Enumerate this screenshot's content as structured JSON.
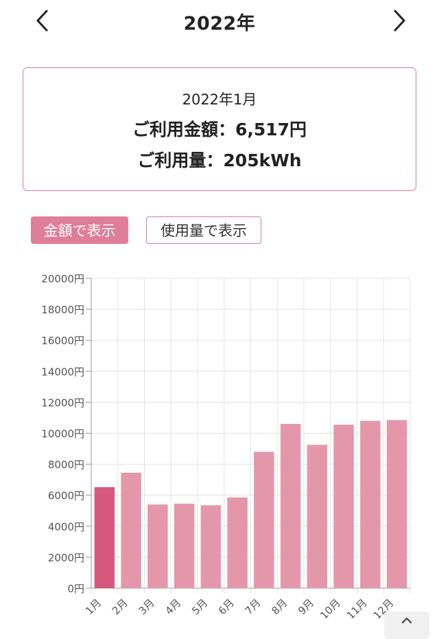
{
  "header": {
    "title": "2022年",
    "prev_icon": "chevron-left-icon",
    "next_icon": "chevron-right-icon"
  },
  "summary": {
    "month": "2022年1月",
    "amount": "ご利用金額：6,517円",
    "usage": "ご利用量：205kWh"
  },
  "toggles": {
    "amount_label": "金額で表示",
    "usage_label": "使用量で表示",
    "selected": "amount"
  },
  "colors": {
    "accent": "#df7d9a",
    "bar": "#e497ab",
    "bar_selected": "#d7587f",
    "border": "#d77b98",
    "grid": "#e3e3e3"
  },
  "chart_data": {
    "type": "bar",
    "categories": [
      "1月",
      "2月",
      "3月",
      "4月",
      "5月",
      "6月",
      "7月",
      "8月",
      "9月",
      "10月",
      "11月",
      "12月"
    ],
    "values": [
      6517,
      7450,
      5400,
      5450,
      5350,
      5850,
      8800,
      10600,
      9250,
      10550,
      10800,
      10850
    ],
    "selected_index": 0,
    "ylim": [
      0,
      20000
    ],
    "yticks": [
      "0円",
      "2000円",
      "4000円",
      "6000円",
      "8000円",
      "10000円",
      "12000円",
      "14000円",
      "16000円",
      "18000円",
      "20000円"
    ],
    "grid": true
  },
  "scroll_top_icon": "chevron-up-icon"
}
